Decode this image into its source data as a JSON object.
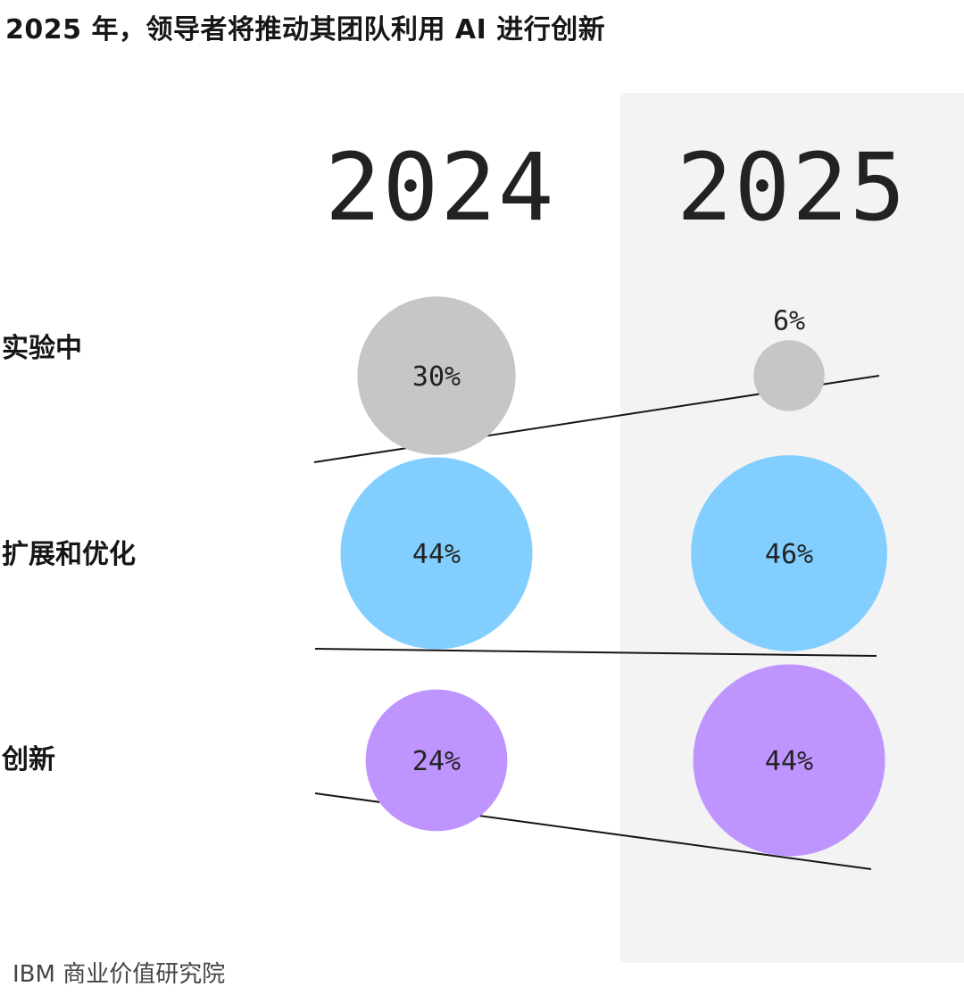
{
  "title": "2025 年，领导者将推动其团队利用 AI 进行创新",
  "source": "IBM 商业价值研究院",
  "colors": {
    "experimenting": "#c6c6c6",
    "scaling": "#82cfff",
    "innovating": "#be95ff",
    "highlight_panel": "#f3f3f3",
    "line": "#161616"
  },
  "chart_data": {
    "type": "bubble",
    "title": "2025 年，领导者将推动其团队利用 AI 进行创新",
    "columns": [
      "2024",
      "2025"
    ],
    "highlighted_column": "2025",
    "rows": [
      "实验中",
      "扩展和优化",
      "创新"
    ],
    "series": [
      {
        "name": "实验中",
        "values": [
          30,
          6
        ],
        "labels": [
          "30%",
          "6%"
        ],
        "color": "#c6c6c6"
      },
      {
        "name": "扩展和优化",
        "values": [
          44,
          46
        ],
        "labels": [
          "44%",
          "46%"
        ],
        "color": "#82cfff"
      },
      {
        "name": "创新",
        "values": [
          24,
          44
        ],
        "labels": [
          "24%",
          "44%"
        ],
        "color": "#be95ff"
      }
    ],
    "unit": "%"
  }
}
